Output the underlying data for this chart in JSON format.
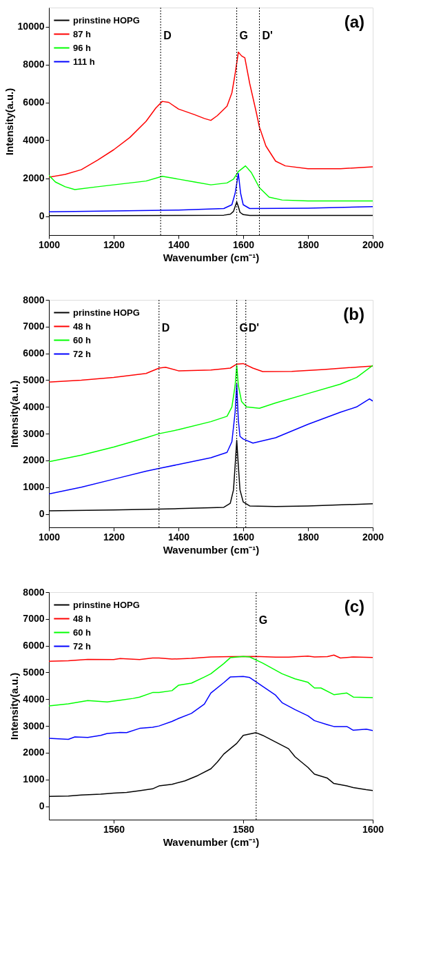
{
  "chart_data": [
    {
      "type": "line",
      "xlabel": "Wavenumber (cm⁻¹)",
      "ylabel": "Intensity(a.u.)",
      "xlim": [
        1000,
        2000
      ],
      "xticks": [
        1000,
        1200,
        1400,
        1600,
        1800,
        2000
      ],
      "ylim": [
        -1000,
        11000
      ],
      "yticks": [
        0,
        2000,
        4000,
        6000,
        8000,
        10000
      ],
      "legend": "top left",
      "grid": false,
      "annotations": [
        "(a)"
      ],
      "ref_lines": [
        {
          "axis": "x",
          "value": 1345,
          "label": "D",
          "line_style": "dotted",
          "color": "#000000"
        },
        {
          "axis": "x",
          "value": 1580,
          "label": "G",
          "line_style": "dotted",
          "color": "#000000"
        },
        {
          "axis": "x",
          "value": 1650,
          "label": "D'",
          "line_style": "dotted",
          "color": "#000000"
        }
      ],
      "series": [
        {
          "name": "prinstine HOPG",
          "color": "#000000",
          "x": [
            1000,
            1200,
            1400,
            1540,
            1560,
            1570,
            1575,
            1580,
            1585,
            1590,
            1600,
            1620,
            1800,
            2000
          ],
          "values": [
            30,
            30,
            40,
            50,
            100,
            250,
            500,
            750,
            500,
            200,
            80,
            40,
            40,
            40
          ]
        },
        {
          "name": "87 h",
          "color": "#ff0000",
          "x": [
            1000,
            1050,
            1100,
            1150,
            1200,
            1250,
            1300,
            1330,
            1350,
            1370,
            1400,
            1450,
            1480,
            1500,
            1520,
            1550,
            1565,
            1575,
            1585,
            1595,
            1605,
            1620,
            1640,
            1650,
            1670,
            1700,
            1730,
            1800,
            1900,
            2000
          ],
          "values": [
            2050,
            2200,
            2450,
            2950,
            3500,
            4150,
            5000,
            5700,
            6050,
            6000,
            5650,
            5350,
            5150,
            5050,
            5300,
            5800,
            6500,
            7500,
            8650,
            8450,
            8350,
            7000,
            5500,
            4700,
            3700,
            2900,
            2650,
            2500,
            2500,
            2600
          ]
        },
        {
          "name": "96 h",
          "color": "#00ff00",
          "x": [
            1000,
            1020,
            1050,
            1080,
            1150,
            1200,
            1300,
            1350,
            1400,
            1450,
            1500,
            1550,
            1570,
            1585,
            1607,
            1625,
            1650,
            1680,
            1720,
            1800,
            2000
          ],
          "values": [
            2150,
            1800,
            1550,
            1400,
            1550,
            1650,
            1850,
            2100,
            1950,
            1800,
            1650,
            1750,
            1950,
            2350,
            2650,
            2300,
            1500,
            1000,
            850,
            800,
            800
          ]
        },
        {
          "name": "111 h",
          "color": "#0000ff",
          "x": [
            1000,
            1200,
            1400,
            1540,
            1565,
            1575,
            1585,
            1592,
            1600,
            1620,
            1800,
            2000
          ],
          "values": [
            230,
            270,
            320,
            400,
            600,
            1200,
            2250,
            1200,
            600,
            400,
            420,
            500
          ]
        }
      ]
    },
    {
      "type": "line",
      "xlabel": "Wavenumber (cm⁻¹)",
      "ylabel": "Intensity(a.u.)",
      "xlim": [
        1000,
        2000
      ],
      "xticks": [
        1000,
        1200,
        1400,
        1600,
        1800,
        2000
      ],
      "ylim": [
        -500,
        8000
      ],
      "yticks": [
        0,
        1000,
        2000,
        3000,
        4000,
        5000,
        6000,
        7000,
        8000
      ],
      "legend": "top left",
      "grid": false,
      "annotations": [
        "(b)"
      ],
      "ref_lines": [
        {
          "axis": "x",
          "value": 1340,
          "label": "D",
          "line_style": "dotted",
          "color": "#000000"
        },
        {
          "axis": "x",
          "value": 1580,
          "label": "G",
          "line_style": "dotted",
          "color": "#000000"
        },
        {
          "axis": "x",
          "value": 1608,
          "label": "D'",
          "line_style": "dotted",
          "color": "#000000"
        }
      ],
      "series": [
        {
          "name": "prinstine HOPG",
          "color": "#000000",
          "x": [
            1000,
            1200,
            1400,
            1540,
            1560,
            1570,
            1575,
            1580,
            1585,
            1590,
            1600,
            1620,
            1700,
            1800,
            2000
          ],
          "values": [
            120,
            150,
            200,
            250,
            400,
            900,
            1800,
            2750,
            1800,
            900,
            450,
            300,
            280,
            300,
            380
          ]
        },
        {
          "name": "48 h",
          "color": "#ff0000",
          "x": [
            1000,
            1100,
            1200,
            1300,
            1340,
            1360,
            1400,
            1500,
            1560,
            1580,
            1600,
            1630,
            1660,
            1750,
            1850,
            2000
          ],
          "values": [
            4930,
            5000,
            5100,
            5250,
            5450,
            5480,
            5350,
            5380,
            5450,
            5600,
            5620,
            5450,
            5320,
            5330,
            5400,
            5530
          ]
        },
        {
          "name": "60 h",
          "color": "#00ff00",
          "x": [
            1000,
            1100,
            1200,
            1300,
            1340,
            1400,
            1500,
            1550,
            1565,
            1575,
            1580,
            1585,
            1595,
            1610,
            1650,
            1700,
            1800,
            1900,
            1950,
            2000
          ],
          "values": [
            1950,
            2200,
            2500,
            2850,
            3000,
            3150,
            3450,
            3650,
            4000,
            4800,
            5550,
            4800,
            4200,
            4000,
            3950,
            4150,
            4500,
            4850,
            5100,
            5550
          ]
        },
        {
          "name": "72 h",
          "color": "#0000ff",
          "x": [
            1000,
            1100,
            1200,
            1300,
            1340,
            1400,
            1500,
            1550,
            1565,
            1575,
            1580,
            1585,
            1590,
            1600,
            1630,
            1700,
            1800,
            1900,
            1950,
            1990,
            2000
          ],
          "values": [
            750,
            1000,
            1300,
            1600,
            1700,
            1850,
            2100,
            2300,
            2700,
            3800,
            4850,
            3500,
            2900,
            2800,
            2650,
            2850,
            3350,
            3800,
            4000,
            4300,
            4220
          ]
        }
      ]
    },
    {
      "type": "line",
      "xlabel": "Wavenumber (cm⁻¹)",
      "ylabel": "Intensity(a.u.)",
      "xlim": [
        1550,
        1600
      ],
      "xticks": [
        1560,
        1580,
        1600
      ],
      "ylim": [
        -500,
        8000
      ],
      "yticks": [
        0,
        1000,
        2000,
        3000,
        4000,
        5000,
        6000,
        7000,
        8000
      ],
      "legend": "top left",
      "grid": false,
      "annotations": [
        "(c)"
      ],
      "ref_lines": [
        {
          "axis": "x",
          "value": 1582,
          "label": "G",
          "line_style": "dotted",
          "color": "#000000"
        }
      ],
      "series": [
        {
          "name": "prinstine HOPG",
          "color": "#000000",
          "x": [
            1550,
            1553,
            1555,
            1558,
            1560,
            1562,
            1564,
            1566,
            1567,
            1569,
            1571,
            1573,
            1575,
            1576,
            1577,
            1579,
            1580,
            1582,
            1583,
            1585,
            1587,
            1588,
            1590,
            1591,
            1593,
            1594,
            1596,
            1597,
            1599,
            1600
          ],
          "values": [
            370,
            380,
            420,
            450,
            490,
            520,
            580,
            650,
            760,
            820,
            950,
            1150,
            1400,
            1650,
            1950,
            2350,
            2650,
            2750,
            2650,
            2400,
            2150,
            1850,
            1450,
            1200,
            1050,
            850,
            760,
            700,
            620,
            590
          ]
        },
        {
          "name": "48 h",
          "color": "#ff0000",
          "x": [
            1550,
            1553,
            1556,
            1560,
            1561,
            1564,
            1566,
            1567,
            1569,
            1572,
            1575,
            1578,
            1582,
            1585,
            1587,
            1590,
            1591,
            1593,
            1594,
            1595,
            1597,
            1600
          ],
          "values": [
            5420,
            5440,
            5490,
            5480,
            5520,
            5480,
            5540,
            5540,
            5500,
            5530,
            5580,
            5590,
            5600,
            5570,
            5570,
            5610,
            5580,
            5590,
            5650,
            5540,
            5580,
            5560
          ]
        },
        {
          "name": "60 h",
          "color": "#00ff00",
          "x": [
            1550,
            1553,
            1556,
            1559,
            1561,
            1563,
            1564,
            1566,
            1567,
            1569,
            1570,
            1572,
            1574,
            1575,
            1577,
            1578,
            1580,
            1581,
            1583,
            1586,
            1588,
            1590,
            1591,
            1592,
            1594,
            1596,
            1597,
            1600
          ],
          "values": [
            3750,
            3830,
            3950,
            3900,
            3960,
            4030,
            4080,
            4250,
            4250,
            4320,
            4520,
            4600,
            4830,
            4950,
            5330,
            5550,
            5600,
            5580,
            5350,
            4950,
            4760,
            4630,
            4420,
            4420,
            4170,
            4230,
            4080,
            4060
          ]
        },
        {
          "name": "72 h",
          "color": "#0000ff",
          "x": [
            1550,
            1553,
            1554,
            1556,
            1558,
            1559,
            1561,
            1562,
            1564,
            1566,
            1567,
            1569,
            1570,
            1572,
            1574,
            1575,
            1577,
            1578,
            1580,
            1581,
            1583,
            1585,
            1586,
            1588,
            1590,
            1591,
            1593,
            1594,
            1596,
            1597,
            1599,
            1600
          ],
          "values": [
            2540,
            2500,
            2590,
            2570,
            2650,
            2720,
            2760,
            2750,
            2910,
            2950,
            3000,
            3170,
            3280,
            3470,
            3820,
            4230,
            4620,
            4830,
            4850,
            4810,
            4480,
            4150,
            3870,
            3610,
            3380,
            3200,
            3050,
            2980,
            2980,
            2840,
            2880,
            2830
          ]
        }
      ]
    }
  ]
}
